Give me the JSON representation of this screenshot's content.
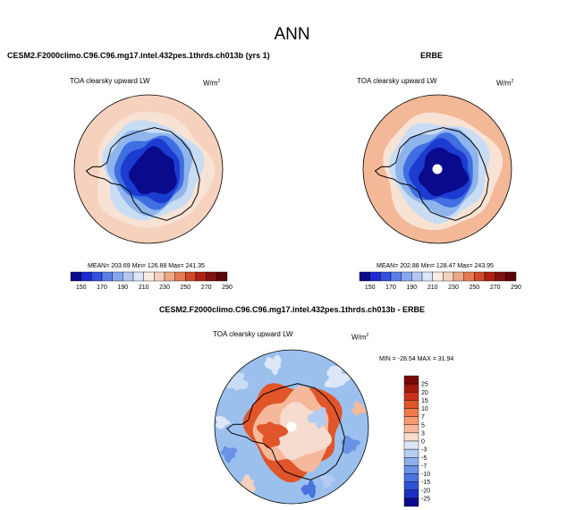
{
  "page_title": "ANN",
  "panels": {
    "model": {
      "title": "CESM2.F2000climo.C96.C96.mg17.intel.432pes.1thrds.ch013b (yrs 1)",
      "variable": "TOA clearsky upward LW",
      "units_base": "W/m",
      "units_exp": "2",
      "stats": "MEAN= 203.69  Min= 126.88  Max= 241.35"
    },
    "obs": {
      "title": "ERBE",
      "variable": "TOA clearsky upward LW",
      "units_base": "W/m",
      "units_exp": "2",
      "stats": "MEAN= 202.88  Min= 128.47  Max= 243.95"
    },
    "diff": {
      "title": "CESM2.F2000climo.C96.C96.mg17.intel.432pes.1thrds.ch013b - ERBE",
      "variable": "TOA clearsky upward LW",
      "units_base": "W/m",
      "units_exp": "2",
      "stats": "MIN = -28.54  MAX =  31.94"
    }
  },
  "colors": {
    "ocean_warm": "#f6d2be",
    "ocean_warm2": "#f2b898",
    "ice_blue1": "#c8dcf4",
    "ice_blue2": "#8fb4ec",
    "ice_blue3": "#3f6fe0",
    "ice_blue4": "#1c3cd0",
    "ice_core": "#0a0a8c",
    "diff_background": "#9cc0ee",
    "diff_red": "#e0552a",
    "diff_light": "#f6dccf"
  },
  "chart_data": [
    {
      "type": "heatmap",
      "title": "CESM2.F2000climo.C96.C96.mg17.intel.432pes.1thrds.ch013b (yrs 1)",
      "variable": "TOA clearsky upward LW",
      "units": "W/m2",
      "stats": {
        "mean": 203.69,
        "min": 126.88,
        "max": 241.35
      },
      "colorbar_levels": [
        150,
        170,
        190,
        210,
        230,
        250,
        270,
        290
      ],
      "colorbar_colors": [
        "#0a0a8c",
        "#1c2ad0",
        "#3450e0",
        "#5a7ee8",
        "#86a6f0",
        "#b4c8f2",
        "#dce6f8",
        "#f8ece4",
        "#f6d2be",
        "#f0a884",
        "#e47a56",
        "#d04a2a",
        "#b02010",
        "#801010",
        "#5c0606"
      ]
    },
    {
      "type": "heatmap",
      "title": "ERBE",
      "variable": "TOA clearsky upward LW",
      "units": "W/m2",
      "stats": {
        "mean": 202.88,
        "min": 128.47,
        "max": 243.95
      },
      "colorbar_levels": [
        150,
        170,
        190,
        210,
        230,
        250,
        270,
        290
      ],
      "colorbar_colors": [
        "#0a0a8c",
        "#1c2ad0",
        "#3450e0",
        "#5a7ee8",
        "#86a6f0",
        "#b4c8f2",
        "#dce6f8",
        "#f8ece4",
        "#f6d2be",
        "#f0a884",
        "#e47a56",
        "#d04a2a",
        "#b02010",
        "#801010",
        "#5c0606"
      ]
    },
    {
      "type": "heatmap",
      "title": "CESM2.F2000climo.C96.C96.mg17.intel.432pes.1thrds.ch013b - ERBE",
      "variable": "TOA clearsky upward LW",
      "units": "W/m2",
      "stats": {
        "min": -28.54,
        "max": 31.94
      },
      "colorbar_levels": [
        25,
        20,
        15,
        10,
        7,
        5,
        3,
        0,
        -3,
        -5,
        -7,
        -10,
        -15,
        -20,
        -25
      ],
      "colorbar_colors": [
        "#7a0a06",
        "#a01a0e",
        "#c8321a",
        "#e0552a",
        "#f07a4a",
        "#f49a72",
        "#f6b89a",
        "#f8dccc",
        "#dce8f8",
        "#b4ccf2",
        "#8cb0ec",
        "#6a92e6",
        "#4a74e0",
        "#2e52d6",
        "#1a30c4",
        "#0a0a8c"
      ]
    }
  ]
}
